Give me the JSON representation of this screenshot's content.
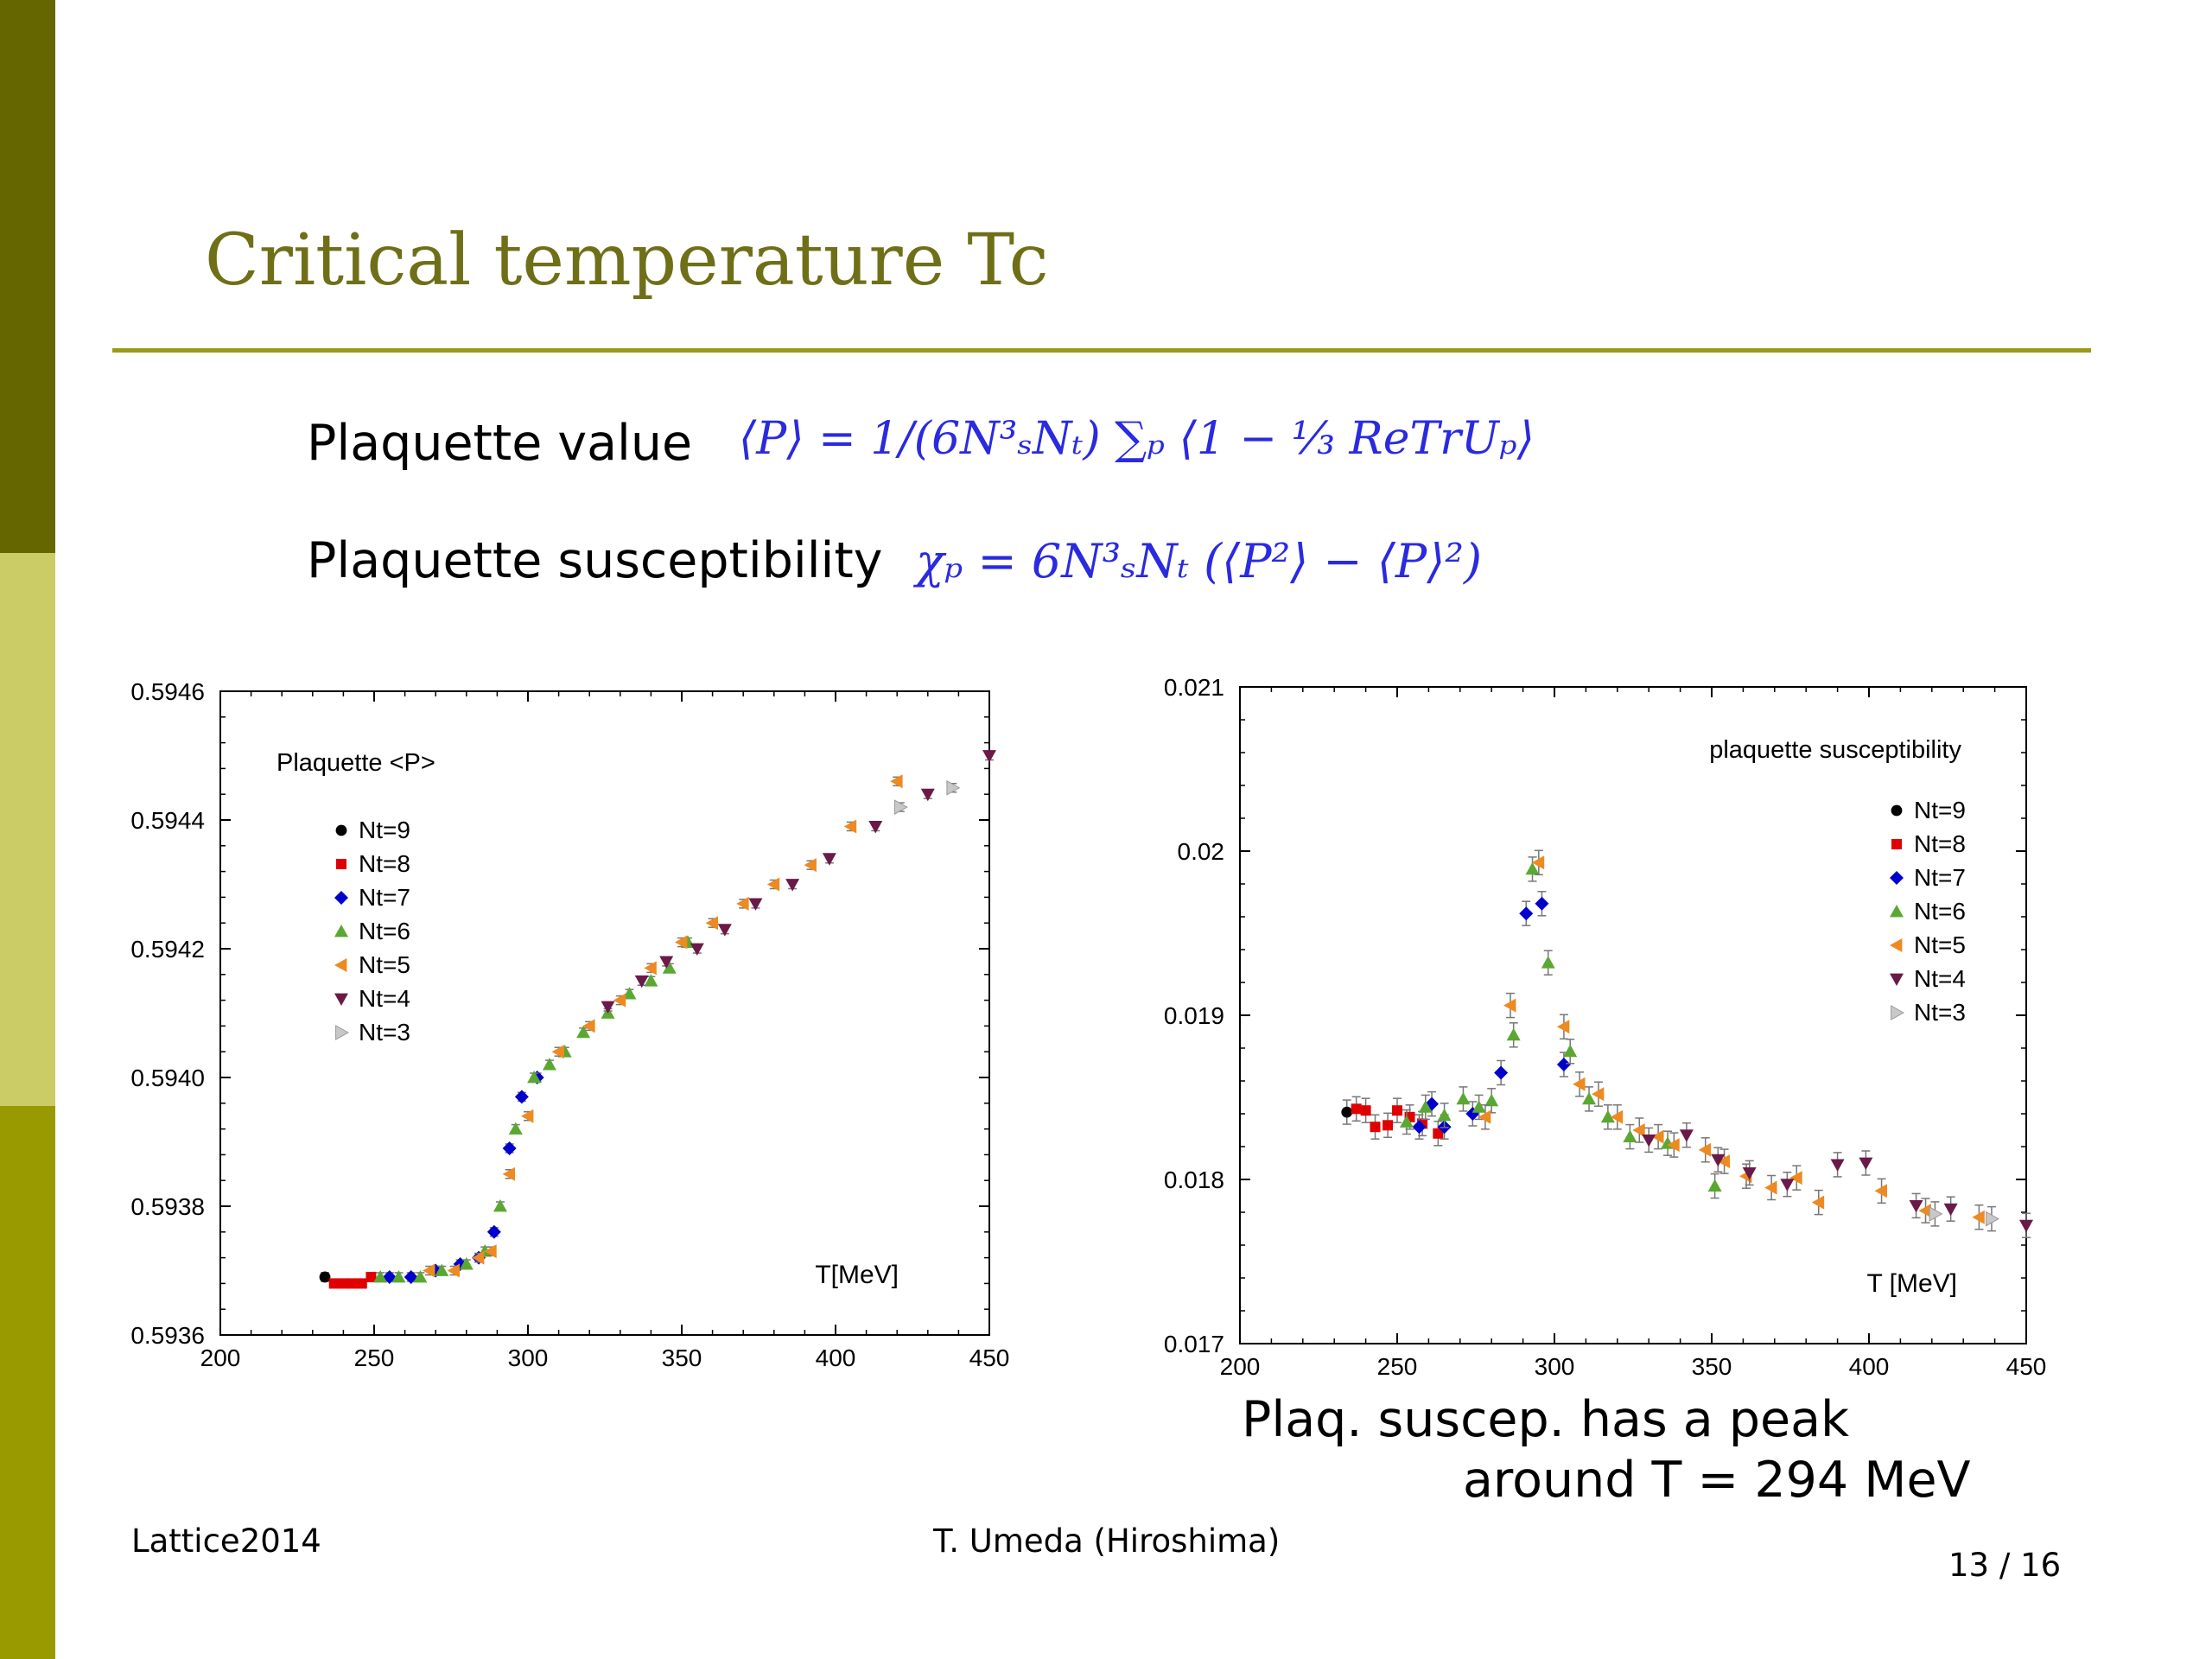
{
  "slide": {
    "title": "Critical temperature Tc",
    "definitions": [
      {
        "label": "Plaquette value",
        "formula": "⟨P⟩ = 1/(6N³ₛNₜ) ∑ₚ ⟨1 − ⅓ ReTrUₚ⟩"
      },
      {
        "label": "Plaquette susceptibility",
        "formula": "χₚ = 6N³ₛNₜ (⟨P²⟩ − ⟨P⟩²)"
      }
    ],
    "caption_line1": "Plaq. suscep. has a peak",
    "caption_line2": "around T = 294 MeV",
    "footer": {
      "left": "Lattice2014",
      "center": "T. Umeda (Hiroshima)",
      "page": "13 / 16"
    }
  },
  "colors": {
    "sidebar_top": "#666600",
    "sidebar_mid": "#cccc66",
    "sidebar_bottom": "#999900",
    "title": "#6f6f18",
    "rule": "#9a9a18",
    "formula": "#2a2ae0"
  },
  "chart_data": [
    {
      "type": "scatter",
      "title": "Plaquette <P>",
      "xlabel": "T[MeV]",
      "ylabel": "",
      "xlim": [
        200,
        450
      ],
      "ylim": [
        0.5936,
        0.5946
      ],
      "xticks": [
        200,
        250,
        300,
        350,
        400,
        450
      ],
      "yticks": [
        0.5936,
        0.5938,
        0.594,
        0.5942,
        0.5944,
        0.5946
      ],
      "ytick_labels": [
        "0.5936",
        "0.5938",
        "0.5940",
        "0.5942",
        "0.5944",
        "0.5946"
      ],
      "legend_position": "top-left",
      "series": [
        {
          "name": "Nt=9",
          "marker": "circle",
          "color": "#000000",
          "x": [
            234
          ],
          "y": [
            0.59369
          ]
        },
        {
          "name": "Nt=8",
          "marker": "square",
          "color": "#e00000",
          "x": [
            237,
            240,
            243,
            246,
            249
          ],
          "y": [
            0.59368,
            0.59368,
            0.59368,
            0.59368,
            0.59369
          ]
        },
        {
          "name": "Nt=7",
          "marker": "diamond",
          "color": "#0000cc",
          "x": [
            255,
            262,
            270,
            278,
            284,
            289,
            294,
            298,
            303
          ],
          "y": [
            0.59369,
            0.59369,
            0.5937,
            0.59371,
            0.59372,
            0.59376,
            0.59389,
            0.59397,
            0.594
          ]
        },
        {
          "name": "Nt=6",
          "marker": "triangle-up",
          "color": "#5aa832",
          "x": [
            252,
            258,
            265,
            272,
            280,
            286,
            291,
            296,
            302,
            307,
            312,
            318,
            326,
            333,
            340,
            346,
            352
          ],
          "y": [
            0.59369,
            0.59369,
            0.59369,
            0.5937,
            0.59371,
            0.59373,
            0.5938,
            0.59392,
            0.594,
            0.59402,
            0.59404,
            0.59407,
            0.5941,
            0.59413,
            0.59415,
            0.59417,
            0.59421
          ]
        },
        {
          "name": "Nt=5",
          "marker": "triangle-left",
          "color": "#ee8a20",
          "x": [
            268,
            276,
            284,
            288,
            294,
            300,
            310,
            320,
            330,
            340,
            350,
            360,
            370,
            380,
            392,
            405,
            420
          ],
          "y": [
            0.5937,
            0.5937,
            0.59372,
            0.59373,
            0.59385,
            0.59394,
            0.59404,
            0.59408,
            0.59412,
            0.59417,
            0.59421,
            0.59424,
            0.59427,
            0.5943,
            0.59433,
            0.59439,
            0.59446
          ]
        },
        {
          "name": "Nt=4",
          "marker": "triangle-down",
          "color": "#6a1a48",
          "x": [
            326,
            337,
            345,
            355,
            364,
            374,
            386,
            398,
            413,
            430,
            450
          ],
          "y": [
            0.59411,
            0.59415,
            0.59418,
            0.5942,
            0.59423,
            0.59427,
            0.5943,
            0.59434,
            0.59439,
            0.59444,
            0.5945
          ]
        },
        {
          "name": "Nt=3",
          "marker": "triangle-right",
          "color": "#c8c8c8",
          "x": [
            421,
            438
          ],
          "y": [
            0.59442,
            0.59445
          ]
        }
      ]
    },
    {
      "type": "scatter",
      "title": "plaquette susceptibility",
      "xlabel": "T [MeV]",
      "ylabel": "",
      "xlim": [
        200,
        450
      ],
      "ylim": [
        0.017,
        0.021
      ],
      "xticks": [
        200,
        250,
        300,
        350,
        400,
        450
      ],
      "yticks": [
        0.017,
        0.018,
        0.019,
        0.02,
        0.021
      ],
      "ytick_labels": [
        "0.017",
        "0.018",
        "0.019",
        "0.02",
        "0.021"
      ],
      "legend_position": "top-right",
      "series": [
        {
          "name": "Nt=9",
          "marker": "circle",
          "color": "#000000",
          "x": [
            234
          ],
          "y": [
            0.01841
          ]
        },
        {
          "name": "Nt=8",
          "marker": "square",
          "color": "#e00000",
          "x": [
            237,
            240,
            243,
            247,
            250,
            254,
            258,
            263
          ],
          "y": [
            0.01843,
            0.01842,
            0.01832,
            0.01833,
            0.01842,
            0.01838,
            0.01834,
            0.01828
          ]
        },
        {
          "name": "Nt=7",
          "marker": "diamond",
          "color": "#0000cc",
          "x": [
            257,
            261,
            265,
            274,
            283,
            291,
            296,
            303
          ],
          "y": [
            0.01832,
            0.01846,
            0.01832,
            0.0184,
            0.01865,
            0.01962,
            0.01968,
            0.0187
          ]
        },
        {
          "name": "Nt=6",
          "marker": "triangle-up",
          "color": "#5aa832",
          "x": [
            253,
            259,
            265,
            271,
            276,
            280,
            287,
            293,
            298,
            305,
            311,
            317,
            324,
            336,
            351
          ],
          "y": [
            0.01835,
            0.01844,
            0.01839,
            0.01849,
            0.01844,
            0.01848,
            0.01888,
            0.01989,
            0.01932,
            0.01878,
            0.01849,
            0.01838,
            0.01826,
            0.01822,
            0.01796
          ]
        },
        {
          "name": "Nt=5",
          "marker": "triangle-left",
          "color": "#ee8a20",
          "x": [
            278,
            286,
            295,
            303,
            308,
            314,
            320,
            327,
            333,
            338,
            348,
            354,
            361,
            369,
            377,
            384,
            404,
            418,
            435
          ],
          "y": [
            0.01838,
            0.01906,
            0.01993,
            0.01893,
            0.01858,
            0.01852,
            0.01838,
            0.0183,
            0.01826,
            0.01821,
            0.01818,
            0.01811,
            0.01802,
            0.01795,
            0.01801,
            0.01786,
            0.01793,
            0.01781,
            0.01777
          ]
        },
        {
          "name": "Nt=4",
          "marker": "triangle-down",
          "color": "#6a1a48",
          "x": [
            330,
            342,
            352,
            362,
            374,
            390,
            399,
            415,
            426,
            450
          ],
          "y": [
            0.01824,
            0.01827,
            0.01812,
            0.01804,
            0.01797,
            0.01809,
            0.0181,
            0.01784,
            0.01782,
            0.01772
          ]
        },
        {
          "name": "Nt=3",
          "marker": "triangle-right",
          "color": "#c8c8c8",
          "x": [
            421,
            439
          ],
          "y": [
            0.01779,
            0.01776
          ]
        }
      ]
    }
  ]
}
